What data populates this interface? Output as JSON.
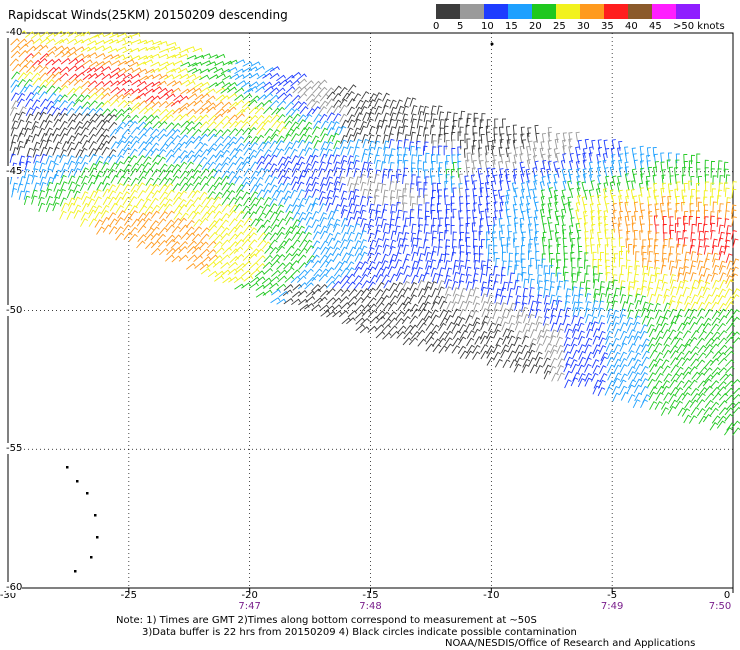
{
  "title": "Rapidscat Winds(25KM) 20150209 descending",
  "legend": {
    "labels": [
      "0",
      "5",
      "10",
      "15",
      "20",
      "25",
      "30",
      "35",
      "40",
      "45",
      ">50 knots"
    ],
    "colors": [
      "#3c3c3c",
      "#9a9a9a",
      "#1e3cff",
      "#1ea0ff",
      "#1fc81f",
      "#f2f21e",
      "#ff9a1e",
      "#ff1e1e",
      "#8b5a2b",
      "#ff1eff",
      "#8f1eff"
    ]
  },
  "axes": {
    "x_ticks": [
      "-30",
      "-25",
      "-20",
      "-15",
      "-10",
      "-5",
      "0"
    ],
    "x_values": [
      -30,
      -25,
      -20,
      -15,
      -10,
      -5,
      0
    ],
    "y_ticks": [
      "-40",
      "-45",
      "-50",
      "-55",
      "-60"
    ],
    "y_values": [
      -40,
      -45,
      -50,
      -55,
      -60
    ],
    "x_range": [
      -30,
      0
    ],
    "y_range": [
      -60,
      -40
    ]
  },
  "times": {
    "labels": [
      "7:47",
      "7:48",
      "7:49",
      "7:50"
    ],
    "x_values": [
      -20,
      -15,
      -5,
      0
    ]
  },
  "notes": {
    "line1": "Note: 1) Times are GMT 2)Times along bottom correspond to measurement at ~50S",
    "line2": "3)Data buffer is 22 hrs from 20150209 4) Black circles indicate possible contamination",
    "line3": "NOAA/NESDIS/Office of Research and Applications"
  }
}
